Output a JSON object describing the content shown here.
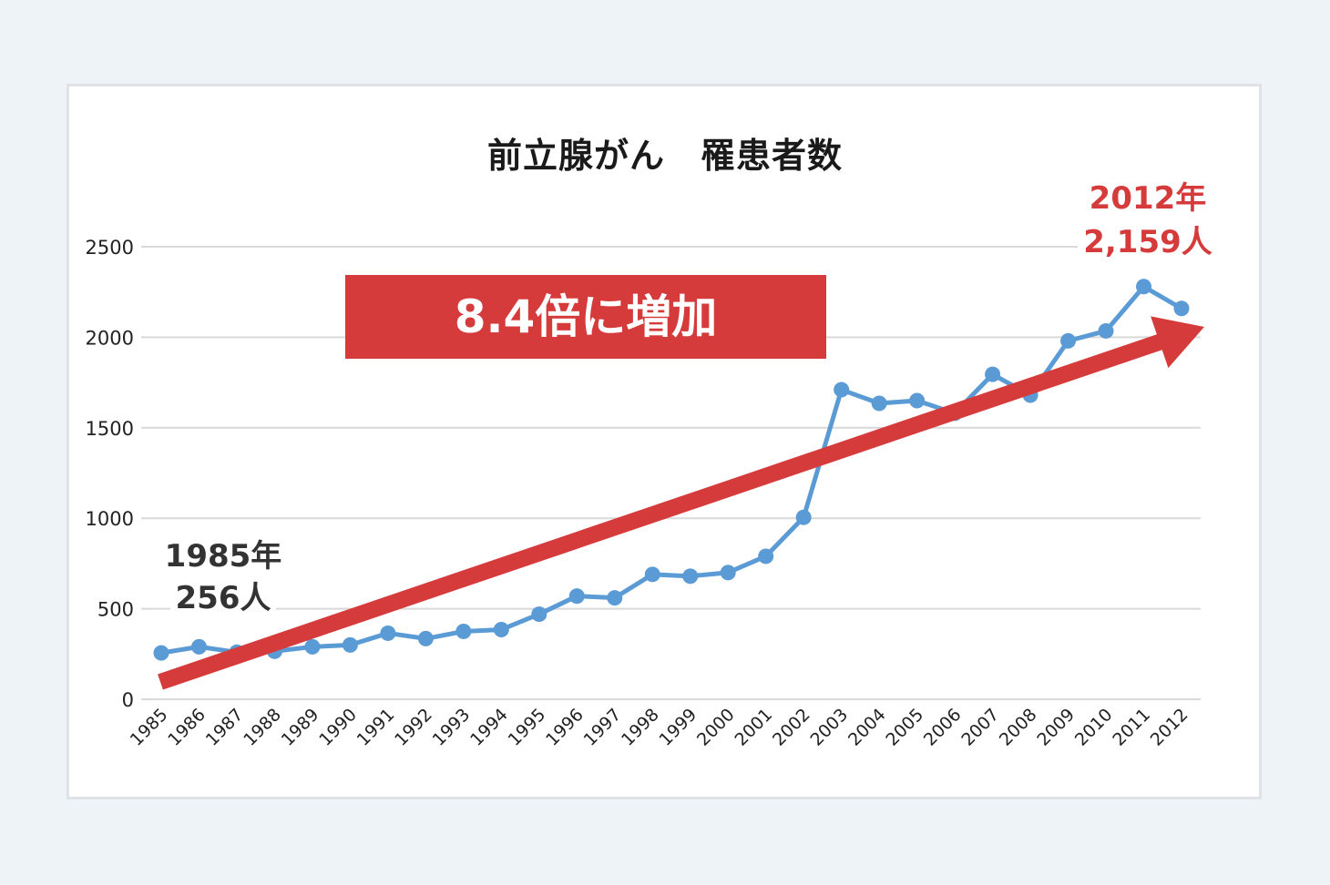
{
  "title": "前立腺がん　罹患者数",
  "banner": {
    "label": "8.4倍に増加",
    "color": "#d63b3c"
  },
  "annotations": {
    "start": {
      "year": "1985年",
      "value": "256人"
    },
    "end": {
      "year": "2012年",
      "value": "2,159人",
      "color": "#d63b3c"
    }
  },
  "colors": {
    "series": "#5b9bd5",
    "arrow": "#d63b3c",
    "grid": "#d9d9d9",
    "background": "#eef3f7"
  },
  "chart_data": {
    "type": "line",
    "title": "前立腺がん　罹患者数",
    "xlabel": "",
    "ylabel": "",
    "ylim": [
      0,
      2500
    ],
    "yticks": [
      0,
      500,
      1000,
      1500,
      2000,
      2500
    ],
    "grid": true,
    "legend": "none",
    "categories": [
      "1985",
      "1986",
      "1987",
      "1988",
      "1989",
      "1990",
      "1991",
      "1992",
      "1993",
      "1994",
      "1995",
      "1996",
      "1997",
      "1998",
      "1999",
      "2000",
      "2001",
      "2002",
      "2003",
      "2004",
      "2005",
      "2006",
      "2007",
      "2008",
      "2009",
      "2010",
      "2011",
      "2012"
    ],
    "series": [
      {
        "name": "罹患者数",
        "values": [
          256,
          290,
          260,
          265,
          290,
          300,
          365,
          335,
          375,
          385,
          470,
          570,
          560,
          690,
          680,
          700,
          790,
          1005,
          1710,
          1635,
          1650,
          1580,
          1795,
          1680,
          1980,
          2035,
          2280,
          2159
        ]
      }
    ],
    "annotations": [
      {
        "text": "8.4倍に増加",
        "type": "banner"
      },
      {
        "text": "1985年 256人",
        "x": "1985"
      },
      {
        "text": "2012年 2,159人",
        "x": "2012"
      },
      {
        "type": "trend-arrow",
        "from": [
          "1985",
          100
        ],
        "to": [
          "2012",
          2080
        ]
      }
    ]
  }
}
